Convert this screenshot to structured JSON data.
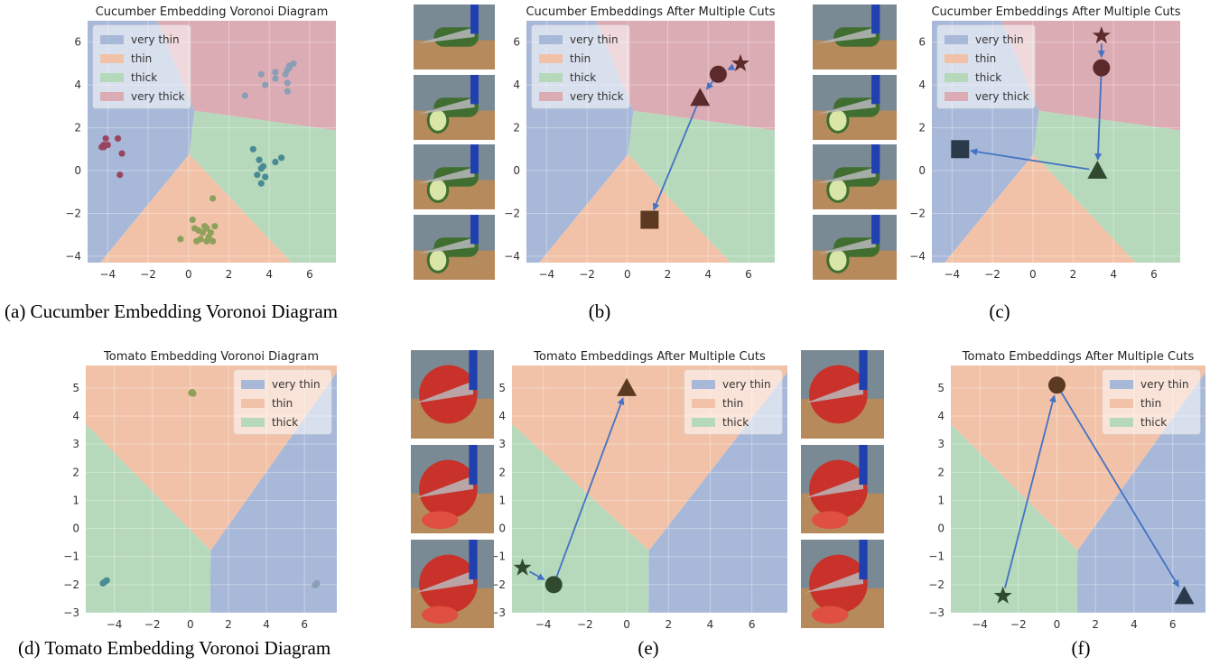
{
  "colors": {
    "very_thin": "#a8b8d8",
    "thin": "#f1c2a8",
    "thick": "#b5d9ba",
    "very_thick": "#dcacb4",
    "arrow": "#4472c4",
    "cluster_very_thin": "#8a9fb5",
    "cluster_thin": "#8ea05a",
    "cluster_thick": "#4a8a94",
    "cluster_very_thick": "#9a4560",
    "marker_very_thick": "#5c2a2a",
    "marker_thin": "#5c3a22",
    "marker_thick": "#2f4a2f",
    "marker_very_thin": "#2a3a4a"
  },
  "captions": [
    "(a) Cucumber Embedding Voronoi Diagram",
    "(b)",
    "(c)",
    "(d) Tomato Embedding Voronoi Diagram",
    "(e)",
    "(f)"
  ],
  "photo_colors": {
    "cucumber": "#3f6e30",
    "tomato": "#c8322a",
    "board": "#b68a5a",
    "bg": "#7a8a94",
    "knife": "#b8b8bc",
    "handle": "#2040b0"
  },
  "chart_data": [
    {
      "id": "a",
      "type": "scatter",
      "title": "Cucumber Embedding Voronoi Diagram",
      "xlim": [
        -5,
        7.3
      ],
      "ylim": [
        -4.3,
        7
      ],
      "xticks": [
        -4,
        -2,
        0,
        2,
        4,
        6
      ],
      "yticks": [
        -4,
        -2,
        0,
        2,
        4,
        6
      ],
      "legend": [
        "very thin",
        "thin",
        "thick",
        "very thick"
      ],
      "legend_position": "top-left",
      "sites": [
        [
          -3.8,
          1.0
        ],
        [
          0.8,
          -3.0
        ],
        [
          3.8,
          0.0
        ],
        [
          4.4,
          4.6
        ]
      ],
      "clusters": [
        {
          "name": "very thick",
          "points": [
            [
              -4.3,
              1.1
            ],
            [
              -4.2,
              1.2
            ],
            [
              -4.0,
              1.2
            ],
            [
              -4.1,
              1.5
            ],
            [
              -3.5,
              1.5
            ],
            [
              -3.3,
              0.8
            ],
            [
              -3.4,
              -0.2
            ],
            [
              -4.2,
              1.1
            ]
          ]
        },
        {
          "name": "thin",
          "points": [
            [
              0.2,
              -2.3
            ],
            [
              1.2,
              -1.3
            ],
            [
              0.3,
              -2.7
            ],
            [
              0.5,
              -2.8
            ],
            [
              0.7,
              -2.9
            ],
            [
              0.9,
              -2.7
            ],
            [
              1.1,
              -2.9
            ],
            [
              1.3,
              -2.6
            ],
            [
              0.6,
              -3.2
            ],
            [
              0.9,
              -3.3
            ],
            [
              1.2,
              -3.3
            ],
            [
              -0.4,
              -3.2
            ],
            [
              0.4,
              -3.3
            ],
            [
              1.0,
              -3.1
            ],
            [
              0.8,
              -2.6
            ]
          ]
        },
        {
          "name": "thick",
          "points": [
            [
              3.2,
              1.0
            ],
            [
              3.5,
              0.5
            ],
            [
              3.7,
              0.2
            ],
            [
              3.4,
              -0.2
            ],
            [
              3.8,
              -0.3
            ],
            [
              3.6,
              -0.6
            ],
            [
              4.3,
              0.4
            ],
            [
              4.6,
              0.6
            ],
            [
              3.6,
              0.1
            ]
          ]
        },
        {
          "name": "very thin",
          "points": [
            [
              2.8,
              3.5
            ],
            [
              3.6,
              4.5
            ],
            [
              3.8,
              4.0
            ],
            [
              4.3,
              4.6
            ],
            [
              4.3,
              4.3
            ],
            [
              4.9,
              4.7
            ],
            [
              5.0,
              4.9
            ],
            [
              5.2,
              5.0
            ],
            [
              4.8,
              4.5
            ],
            [
              4.9,
              4.1
            ],
            [
              4.9,
              3.7
            ],
            [
              5.0,
              4.8
            ]
          ]
        }
      ]
    },
    {
      "id": "b",
      "type": "scatter",
      "title": "Cucumber Embeddings After Multiple Cuts",
      "xlim": [
        -5,
        7.3
      ],
      "ylim": [
        -4.3,
        7
      ],
      "xticks": [
        -4,
        -2,
        0,
        2,
        4,
        6
      ],
      "yticks": [
        -4,
        -2,
        0,
        2,
        4,
        6
      ],
      "legend": [
        "very thin",
        "thin",
        "thick",
        "very thick"
      ],
      "legend_position": "top-left",
      "sites": [
        [
          -3.8,
          1.0
        ],
        [
          0.8,
          -3.0
        ],
        [
          3.8,
          0.0
        ],
        [
          4.4,
          4.6
        ]
      ],
      "trajectory": [
        {
          "x": 5.6,
          "y": 5.0,
          "marker": "star"
        },
        {
          "x": 4.5,
          "y": 4.5,
          "marker": "circle"
        },
        {
          "x": 3.6,
          "y": 3.4,
          "marker": "triangle"
        },
        {
          "x": 1.1,
          "y": -2.3,
          "marker": "square"
        }
      ]
    },
    {
      "id": "c",
      "type": "scatter",
      "title": "Cucumber Embeddings After Multiple Cuts",
      "xlim": [
        -5,
        7.3
      ],
      "ylim": [
        -4.3,
        7
      ],
      "xticks": [
        -4,
        -2,
        0,
        2,
        4,
        6
      ],
      "yticks": [
        -4,
        -2,
        0,
        2,
        4,
        6
      ],
      "legend": [
        "very thin",
        "thin",
        "thick",
        "very thick"
      ],
      "legend_position": "top-left",
      "sites": [
        [
          -3.8,
          1.0
        ],
        [
          0.8,
          -3.0
        ],
        [
          3.8,
          0.0
        ],
        [
          4.4,
          4.6
        ]
      ],
      "trajectory": [
        {
          "x": 3.4,
          "y": 6.3,
          "marker": "star"
        },
        {
          "x": 3.4,
          "y": 4.8,
          "marker": "circle"
        },
        {
          "x": 3.2,
          "y": 0.0,
          "marker": "triangle"
        },
        {
          "x": -3.6,
          "y": 1.0,
          "marker": "square"
        }
      ]
    },
    {
      "id": "d",
      "type": "scatter",
      "title": "Tomato Embedding Voronoi Diagram",
      "xlim": [
        -5.5,
        7.7
      ],
      "ylim": [
        -3,
        5.8
      ],
      "xticks": [
        -4,
        -2,
        0,
        2,
        4,
        6
      ],
      "yticks": [
        -3,
        -2,
        -1,
        0,
        1,
        2,
        3,
        4,
        5
      ],
      "legend": [
        "very thin",
        "thin",
        "thick"
      ],
      "legend_position": "top-right",
      "sites": [
        [
          6.6,
          -2.0
        ],
        [
          0.1,
          4.8
        ],
        [
          -4.5,
          -1.9
        ]
      ],
      "clusters": [
        {
          "name": "thin",
          "points": [
            [
              0.1,
              4.85
            ],
            [
              0.15,
              4.8
            ],
            [
              0.05,
              4.82
            ]
          ]
        },
        {
          "name": "thick",
          "points": [
            [
              -4.6,
              -1.95
            ],
            [
              -4.4,
              -1.85
            ],
            [
              -4.5,
              -1.9
            ]
          ]
        },
        {
          "name": "very thin",
          "points": [
            [
              6.6,
              -2.0
            ],
            [
              6.65,
              -1.95
            ],
            [
              6.55,
              -2.02
            ]
          ]
        }
      ]
    },
    {
      "id": "e",
      "type": "scatter",
      "title": "Tomato Embeddings After Multiple Cuts",
      "xlim": [
        -5.5,
        7.7
      ],
      "ylim": [
        -3,
        5.8
      ],
      "xticks": [
        -4,
        -2,
        0,
        2,
        4,
        6
      ],
      "yticks": [
        -3,
        -2,
        -1,
        0,
        1,
        2,
        3,
        4,
        5
      ],
      "legend": [
        "very thin",
        "thin",
        "thick"
      ],
      "legend_position": "top-right",
      "sites": [
        [
          6.6,
          -2.0
        ],
        [
          0.1,
          4.8
        ],
        [
          -4.5,
          -1.9
        ]
      ],
      "trajectory": [
        {
          "x": -5.0,
          "y": -1.4,
          "marker": "star"
        },
        {
          "x": -3.5,
          "y": -2.0,
          "marker": "circle"
        },
        {
          "x": 0.0,
          "y": 5.0,
          "marker": "triangle"
        }
      ]
    },
    {
      "id": "f",
      "type": "scatter",
      "title": "Tomato Embeddings After Multiple Cuts",
      "xlim": [
        -5.5,
        7.7
      ],
      "ylim": [
        -3,
        5.8
      ],
      "xticks": [
        -4,
        -2,
        0,
        2,
        4,
        6
      ],
      "yticks": [
        -3,
        -2,
        -1,
        0,
        1,
        2,
        3,
        4,
        5
      ],
      "legend": [
        "very thin",
        "thin",
        "thick"
      ],
      "legend_position": "top-right",
      "sites": [
        [
          6.6,
          -2.0
        ],
        [
          0.1,
          4.8
        ],
        [
          -4.5,
          -1.9
        ]
      ],
      "trajectory": [
        {
          "x": -2.8,
          "y": -2.4,
          "marker": "star"
        },
        {
          "x": 0.0,
          "y": 5.1,
          "marker": "circle"
        },
        {
          "x": 6.6,
          "y": -2.4,
          "marker": "triangle"
        }
      ]
    }
  ]
}
